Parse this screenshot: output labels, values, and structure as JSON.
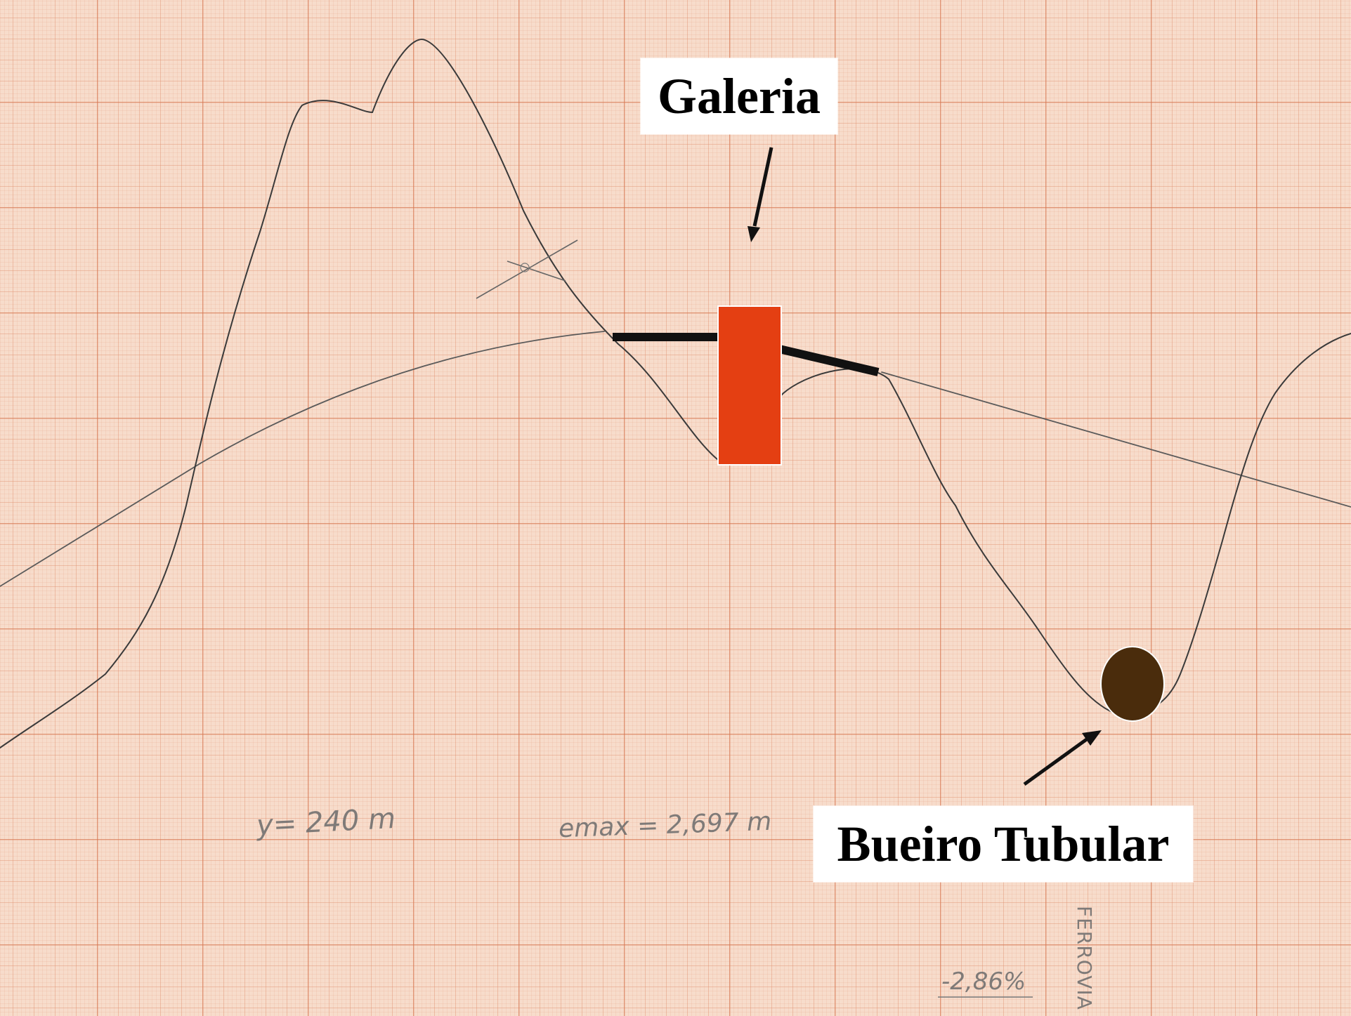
{
  "labels": {
    "galeria": "Galeria",
    "bueiro": "Bueiro Tubular"
  },
  "annotations": {
    "y_value": "y= 240 m",
    "e_max": "emax = 2,697 m",
    "grade": "-2,86%",
    "vertical_text": "FERROVIA"
  },
  "colors": {
    "graph_paper": "#f7dccb",
    "terrain_line": "#3a3a3a",
    "grade_line": "#555555",
    "galeria_fill": "#e43f12",
    "bueiro_fill": "#4a2c0c",
    "label_bg": "#ffffff"
  }
}
